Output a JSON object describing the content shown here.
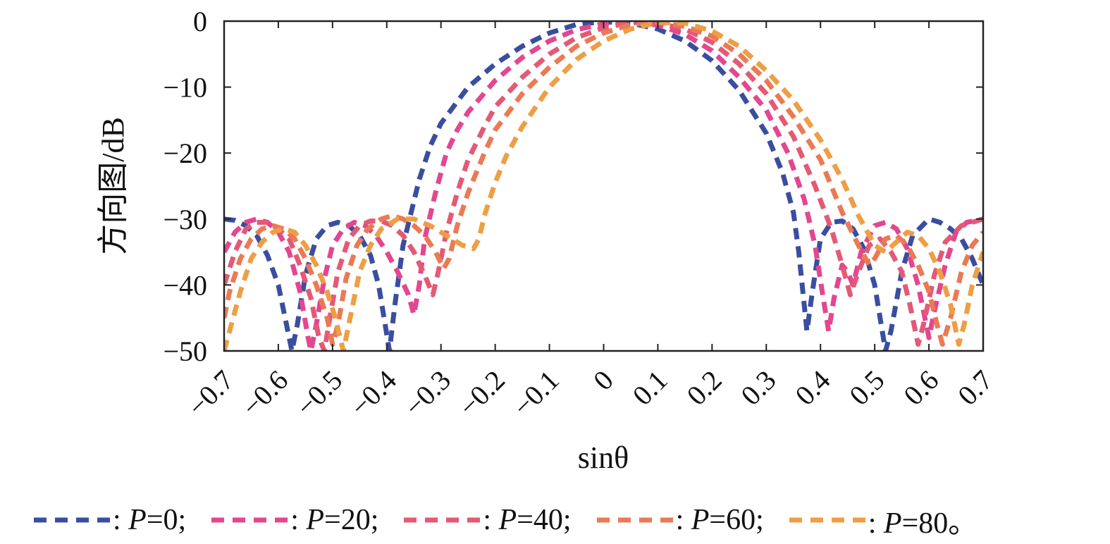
{
  "chart_data": {
    "type": "line",
    "xlabel": "sinθ",
    "ylabel": "方向图/dB",
    "xlim": [
      -0.7,
      0.7
    ],
    "ylim": [
      -50,
      0
    ],
    "xticks": [
      -0.7,
      -0.6,
      -0.5,
      -0.4,
      -0.3,
      -0.2,
      -0.1,
      0,
      0.1,
      0.2,
      0.3,
      0.4,
      0.5,
      0.6,
      0.7
    ],
    "xtick_labels": [
      "−0.7",
      "−0.6",
      "−0.5",
      "−0.4",
      "−0.3",
      "−0.2",
      "−0.1",
      "0",
      "0.1",
      "0.2",
      "0.3",
      "0.4",
      "0.5",
      "0.6",
      "0.7"
    ],
    "yticks": [
      0,
      -10,
      -20,
      -30,
      -40,
      -50
    ],
    "ytick_labels": [
      "0",
      "−10",
      "−20",
      "−30",
      "−40",
      "−50"
    ],
    "grid": false,
    "legend_position": "bottom",
    "series": [
      {
        "name": "P=0",
        "color": "#3a4ea0",
        "points": [
          [
            -0.7,
            -30
          ],
          [
            -0.68,
            -30.2
          ],
          [
            -0.66,
            -31
          ],
          [
            -0.64,
            -32.5
          ],
          [
            -0.62,
            -35.5
          ],
          [
            -0.6,
            -40
          ],
          [
            -0.585,
            -46
          ],
          [
            -0.575,
            -50
          ],
          [
            -0.565,
            -46
          ],
          [
            -0.55,
            -38.5
          ],
          [
            -0.53,
            -33
          ],
          [
            -0.51,
            -31
          ],
          [
            -0.49,
            -30.5
          ],
          [
            -0.47,
            -31
          ],
          [
            -0.45,
            -32.5
          ],
          [
            -0.43,
            -35.5
          ],
          [
            -0.415,
            -40
          ],
          [
            -0.403,
            -46
          ],
          [
            -0.395,
            -50
          ],
          [
            -0.385,
            -43
          ],
          [
            -0.37,
            -34
          ],
          [
            -0.355,
            -29
          ],
          [
            -0.34,
            -24
          ],
          [
            -0.32,
            -19
          ],
          [
            -0.3,
            -15.5
          ],
          [
            -0.25,
            -10
          ],
          [
            -0.2,
            -6.5
          ],
          [
            -0.15,
            -3.8
          ],
          [
            -0.1,
            -1.8
          ],
          [
            -0.05,
            -0.5
          ],
          [
            0,
            -0.1
          ],
          [
            0.05,
            -0.3
          ],
          [
            0.1,
            -1.2
          ],
          [
            0.15,
            -3
          ],
          [
            0.2,
            -6
          ],
          [
            0.25,
            -10.5
          ],
          [
            0.3,
            -17
          ],
          [
            0.33,
            -23
          ],
          [
            0.35,
            -29
          ],
          [
            0.36,
            -35
          ],
          [
            0.37,
            -43
          ],
          [
            0.375,
            -47
          ],
          [
            0.385,
            -41
          ],
          [
            0.4,
            -33
          ],
          [
            0.42,
            -30.5
          ],
          [
            0.44,
            -30.3
          ],
          [
            0.46,
            -31.5
          ],
          [
            0.48,
            -34.5
          ],
          [
            0.5,
            -40
          ],
          [
            0.51,
            -45
          ],
          [
            0.52,
            -50
          ],
          [
            0.53,
            -47
          ],
          [
            0.55,
            -38
          ],
          [
            0.57,
            -32.5
          ],
          [
            0.6,
            -30
          ],
          [
            0.62,
            -30.5
          ],
          [
            0.64,
            -31.5
          ],
          [
            0.66,
            -33
          ],
          [
            0.68,
            -36
          ],
          [
            0.7,
            -40
          ]
        ]
      },
      {
        "name": "P=20",
        "color": "#e2478f",
        "points": [
          [
            -0.7,
            -35
          ],
          [
            -0.68,
            -32
          ],
          [
            -0.66,
            -30.5
          ],
          [
            -0.64,
            -30
          ],
          [
            -0.62,
            -30.5
          ],
          [
            -0.6,
            -32
          ],
          [
            -0.58,
            -35
          ],
          [
            -0.56,
            -41
          ],
          [
            -0.545,
            -48
          ],
          [
            -0.54,
            -50
          ],
          [
            -0.53,
            -46
          ],
          [
            -0.515,
            -39
          ],
          [
            -0.5,
            -34
          ],
          [
            -0.48,
            -31.5
          ],
          [
            -0.46,
            -30.5
          ],
          [
            -0.44,
            -31
          ],
          [
            -0.42,
            -32.5
          ],
          [
            -0.4,
            -35
          ],
          [
            -0.38,
            -38
          ],
          [
            -0.36,
            -41.5
          ],
          [
            -0.35,
            -44.5
          ],
          [
            -0.34,
            -40
          ],
          [
            -0.33,
            -33
          ],
          [
            -0.31,
            -26
          ],
          [
            -0.29,
            -20
          ],
          [
            -0.27,
            -16.5
          ],
          [
            -0.25,
            -13.8
          ],
          [
            -0.2,
            -9
          ],
          [
            -0.15,
            -5.5
          ],
          [
            -0.1,
            -3
          ],
          [
            -0.05,
            -1.3
          ],
          [
            0,
            -0.4
          ],
          [
            0.05,
            -0.1
          ],
          [
            0.1,
            -0.6
          ],
          [
            0.15,
            -2
          ],
          [
            0.2,
            -4.5
          ],
          [
            0.25,
            -8.5
          ],
          [
            0.3,
            -13.5
          ],
          [
            0.34,
            -20
          ],
          [
            0.37,
            -27
          ],
          [
            0.39,
            -34
          ],
          [
            0.405,
            -42
          ],
          [
            0.415,
            -47
          ],
          [
            0.425,
            -42
          ],
          [
            0.44,
            -37
          ],
          [
            0.45,
            -38
          ],
          [
            0.46,
            -40
          ],
          [
            0.475,
            -35
          ],
          [
            0.5,
            -31
          ],
          [
            0.52,
            -30.5
          ],
          [
            0.54,
            -31.5
          ],
          [
            0.56,
            -34.5
          ],
          [
            0.58,
            -40
          ],
          [
            0.59,
            -44
          ],
          [
            0.6,
            -48
          ],
          [
            0.61,
            -44
          ],
          [
            0.63,
            -37
          ],
          [
            0.65,
            -32
          ],
          [
            0.67,
            -30.5
          ],
          [
            0.7,
            -30
          ]
        ]
      },
      {
        "name": "P=40",
        "color": "#e35a76",
        "points": [
          [
            -0.7,
            -40
          ],
          [
            -0.68,
            -35
          ],
          [
            -0.66,
            -31.5
          ],
          [
            -0.64,
            -30.5
          ],
          [
            -0.62,
            -30.5
          ],
          [
            -0.6,
            -31.5
          ],
          [
            -0.58,
            -33
          ],
          [
            -0.56,
            -37
          ],
          [
            -0.54,
            -42
          ],
          [
            -0.525,
            -48
          ],
          [
            -0.515,
            -50
          ],
          [
            -0.505,
            -45
          ],
          [
            -0.49,
            -38
          ],
          [
            -0.47,
            -33
          ],
          [
            -0.45,
            -31
          ],
          [
            -0.43,
            -30.3
          ],
          [
            -0.41,
            -30.3
          ],
          [
            -0.39,
            -31
          ],
          [
            -0.37,
            -32.5
          ],
          [
            -0.35,
            -35
          ],
          [
            -0.33,
            -38.5
          ],
          [
            -0.315,
            -41.5
          ],
          [
            -0.305,
            -38
          ],
          [
            -0.29,
            -32
          ],
          [
            -0.27,
            -26
          ],
          [
            -0.25,
            -21
          ],
          [
            -0.22,
            -16
          ],
          [
            -0.2,
            -13
          ],
          [
            -0.15,
            -8.5
          ],
          [
            -0.1,
            -5
          ],
          [
            -0.05,
            -2.5
          ],
          [
            0,
            -1
          ],
          [
            0.05,
            -0.2
          ],
          [
            0.1,
            -0.3
          ],
          [
            0.15,
            -1.2
          ],
          [
            0.2,
            -3.2
          ],
          [
            0.25,
            -6.5
          ],
          [
            0.3,
            -11
          ],
          [
            0.35,
            -17.5
          ],
          [
            0.39,
            -25
          ],
          [
            0.42,
            -31.5
          ],
          [
            0.44,
            -37
          ],
          [
            0.455,
            -41.5
          ],
          [
            0.47,
            -38
          ],
          [
            0.49,
            -34
          ],
          [
            0.51,
            -33
          ],
          [
            0.53,
            -35
          ],
          [
            0.55,
            -38
          ],
          [
            0.565,
            -43
          ],
          [
            0.58,
            -49
          ],
          [
            0.59,
            -46
          ],
          [
            0.61,
            -38.5
          ],
          [
            0.63,
            -33.5
          ],
          [
            0.66,
            -31
          ],
          [
            0.7,
            -30
          ]
        ]
      },
      {
        "name": "P=60",
        "color": "#ea7a55",
        "points": [
          [
            -0.7,
            -45
          ],
          [
            -0.69,
            -41
          ],
          [
            -0.67,
            -36
          ],
          [
            -0.65,
            -33
          ],
          [
            -0.63,
            -31.5
          ],
          [
            -0.61,
            -31
          ],
          [
            -0.59,
            -31.5
          ],
          [
            -0.57,
            -33
          ],
          [
            -0.55,
            -36
          ],
          [
            -0.53,
            -40
          ],
          [
            -0.51,
            -45
          ],
          [
            -0.5,
            -49
          ],
          [
            -0.49,
            -46
          ],
          [
            -0.475,
            -39
          ],
          [
            -0.455,
            -34
          ],
          [
            -0.435,
            -31.5
          ],
          [
            -0.41,
            -30
          ],
          [
            -0.39,
            -29.5
          ],
          [
            -0.37,
            -30
          ],
          [
            -0.35,
            -31
          ],
          [
            -0.33,
            -32.5
          ],
          [
            -0.31,
            -35
          ],
          [
            -0.295,
            -37.5
          ],
          [
            -0.285,
            -36
          ],
          [
            -0.27,
            -31
          ],
          [
            -0.25,
            -26
          ],
          [
            -0.22,
            -20
          ],
          [
            -0.2,
            -16.5
          ],
          [
            -0.15,
            -11
          ],
          [
            -0.1,
            -7
          ],
          [
            -0.05,
            -3.8
          ],
          [
            0,
            -1.8
          ],
          [
            0.05,
            -0.5
          ],
          [
            0.1,
            -0.1
          ],
          [
            0.15,
            -0.8
          ],
          [
            0.2,
            -2.3
          ],
          [
            0.25,
            -5
          ],
          [
            0.3,
            -9
          ],
          [
            0.35,
            -14.5
          ],
          [
            0.4,
            -21
          ],
          [
            0.44,
            -29
          ],
          [
            0.47,
            -34
          ],
          [
            0.49,
            -37
          ],
          [
            0.5,
            -36
          ],
          [
            0.52,
            -33
          ],
          [
            0.54,
            -32.5
          ],
          [
            0.56,
            -34
          ],
          [
            0.58,
            -37
          ],
          [
            0.6,
            -41
          ],
          [
            0.615,
            -46
          ],
          [
            0.625,
            -49
          ],
          [
            0.64,
            -45
          ],
          [
            0.66,
            -38
          ],
          [
            0.68,
            -34
          ],
          [
            0.7,
            -32
          ]
        ]
      },
      {
        "name": "P=80",
        "color": "#ee9e45",
        "points": [
          [
            -0.7,
            -50
          ],
          [
            -0.69,
            -47
          ],
          [
            -0.67,
            -41
          ],
          [
            -0.65,
            -36
          ],
          [
            -0.63,
            -33.5
          ],
          [
            -0.61,
            -32
          ],
          [
            -0.59,
            -31.5
          ],
          [
            -0.57,
            -32
          ],
          [
            -0.55,
            -34
          ],
          [
            -0.53,
            -37
          ],
          [
            -0.51,
            -41
          ],
          [
            -0.495,
            -45
          ],
          [
            -0.48,
            -50
          ],
          [
            -0.47,
            -46
          ],
          [
            -0.45,
            -38
          ],
          [
            -0.43,
            -34
          ],
          [
            -0.41,
            -31.5
          ],
          [
            -0.38,
            -30
          ],
          [
            -0.35,
            -30
          ],
          [
            -0.32,
            -31
          ],
          [
            -0.29,
            -32.5
          ],
          [
            -0.26,
            -34
          ],
          [
            -0.24,
            -34.5
          ],
          [
            -0.23,
            -33
          ],
          [
            -0.22,
            -29.5
          ],
          [
            -0.2,
            -24.5
          ],
          [
            -0.18,
            -20.5
          ],
          [
            -0.15,
            -16
          ],
          [
            -0.1,
            -10
          ],
          [
            -0.05,
            -5.8
          ],
          [
            0,
            -3
          ],
          [
            0.05,
            -1.2
          ],
          [
            0.1,
            -0.2
          ],
          [
            0.15,
            -0.3
          ],
          [
            0.2,
            -1.5
          ],
          [
            0.25,
            -3.8
          ],
          [
            0.3,
            -7.5
          ],
          [
            0.35,
            -12
          ],
          [
            0.4,
            -18
          ],
          [
            0.44,
            -24
          ],
          [
            0.47,
            -29.5
          ],
          [
            0.5,
            -34
          ],
          [
            0.52,
            -35
          ],
          [
            0.54,
            -33.5
          ],
          [
            0.56,
            -32
          ],
          [
            0.58,
            -32.5
          ],
          [
            0.6,
            -34.5
          ],
          [
            0.62,
            -38
          ],
          [
            0.64,
            -43
          ],
          [
            0.655,
            -49
          ],
          [
            0.665,
            -46
          ],
          [
            0.68,
            -40
          ],
          [
            0.7,
            -35
          ]
        ]
      }
    ]
  },
  "legend": {
    "items": [
      {
        "color": "#3a4ea0",
        "var": "P",
        "value": "=0",
        "sep": ";"
      },
      {
        "color": "#e2478f",
        "var": "P",
        "value": "=20",
        "sep": ";"
      },
      {
        "color": "#e35a76",
        "var": "P",
        "value": "=40",
        "sep": ";"
      },
      {
        "color": "#ea7a55",
        "var": "P",
        "value": "=60",
        "sep": ";"
      },
      {
        "color": "#ee9e45",
        "var": "P",
        "value": "=80",
        "sep": "。"
      }
    ]
  }
}
